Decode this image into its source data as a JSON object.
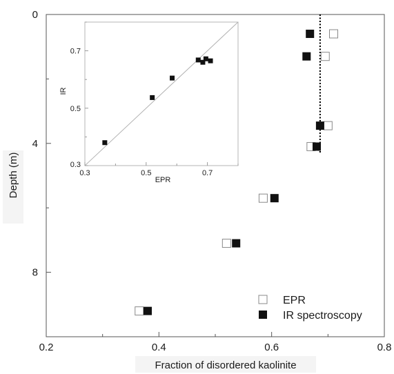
{
  "chart_data": [
    {
      "type": "scatter",
      "xlabel": "Fraction of disordered kaolinite",
      "ylabel": "Depth (m)",
      "xlim": [
        0.2,
        0.8
      ],
      "ylim": [
        10,
        0
      ],
      "x_ticks": [
        "0.2",
        "0.4",
        "0.6",
        "0.8"
      ],
      "y_ticks": [
        "0",
        "4",
        "8"
      ],
      "legend_position": "bottom-right",
      "series": [
        {
          "name": "EPR",
          "marker": "open-square",
          "color": "#888888",
          "points": [
            {
              "x": 0.71,
              "y": 0.6
            },
            {
              "x": 0.695,
              "y": 1.3
            },
            {
              "x": 0.7,
              "y": 3.45
            },
            {
              "x": 0.67,
              "y": 4.1
            },
            {
              "x": 0.585,
              "y": 5.7
            },
            {
              "x": 0.52,
              "y": 7.1
            },
            {
              "x": 0.365,
              "y": 9.2
            }
          ]
        },
        {
          "name": "IR spectroscopy",
          "marker": "filled-square",
          "color": "#111111",
          "points": [
            {
              "x": 0.668,
              "y": 0.6
            },
            {
              "x": 0.662,
              "y": 1.3
            },
            {
              "x": 0.686,
              "y": 3.45
            },
            {
              "x": 0.68,
              "y": 4.1
            },
            {
              "x": 0.605,
              "y": 5.7
            },
            {
              "x": 0.537,
              "y": 7.1
            },
            {
              "x": 0.38,
              "y": 9.2
            }
          ]
        }
      ],
      "reference_line": {
        "orientation": "vertical",
        "x": 0.686,
        "style": "dotted",
        "y_range": [
          0,
          4.3
        ]
      }
    },
    {
      "type": "scatter",
      "xlabel": "EPR",
      "ylabel": "IR",
      "xlim": [
        0.3,
        0.8
      ],
      "ylim": [
        0.3,
        0.8
      ],
      "x_ticks": [
        "0.3",
        "0.5",
        "0.7"
      ],
      "y_ticks": [
        "0.3",
        "0.5",
        "0.7"
      ],
      "diagonal_line": true,
      "points": [
        {
          "x": 0.365,
          "y": 0.38
        },
        {
          "x": 0.52,
          "y": 0.537
        },
        {
          "x": 0.585,
          "y": 0.605
        },
        {
          "x": 0.67,
          "y": 0.668
        },
        {
          "x": 0.685,
          "y": 0.66
        },
        {
          "x": 0.695,
          "y": 0.672
        },
        {
          "x": 0.71,
          "y": 0.665
        }
      ]
    }
  ]
}
